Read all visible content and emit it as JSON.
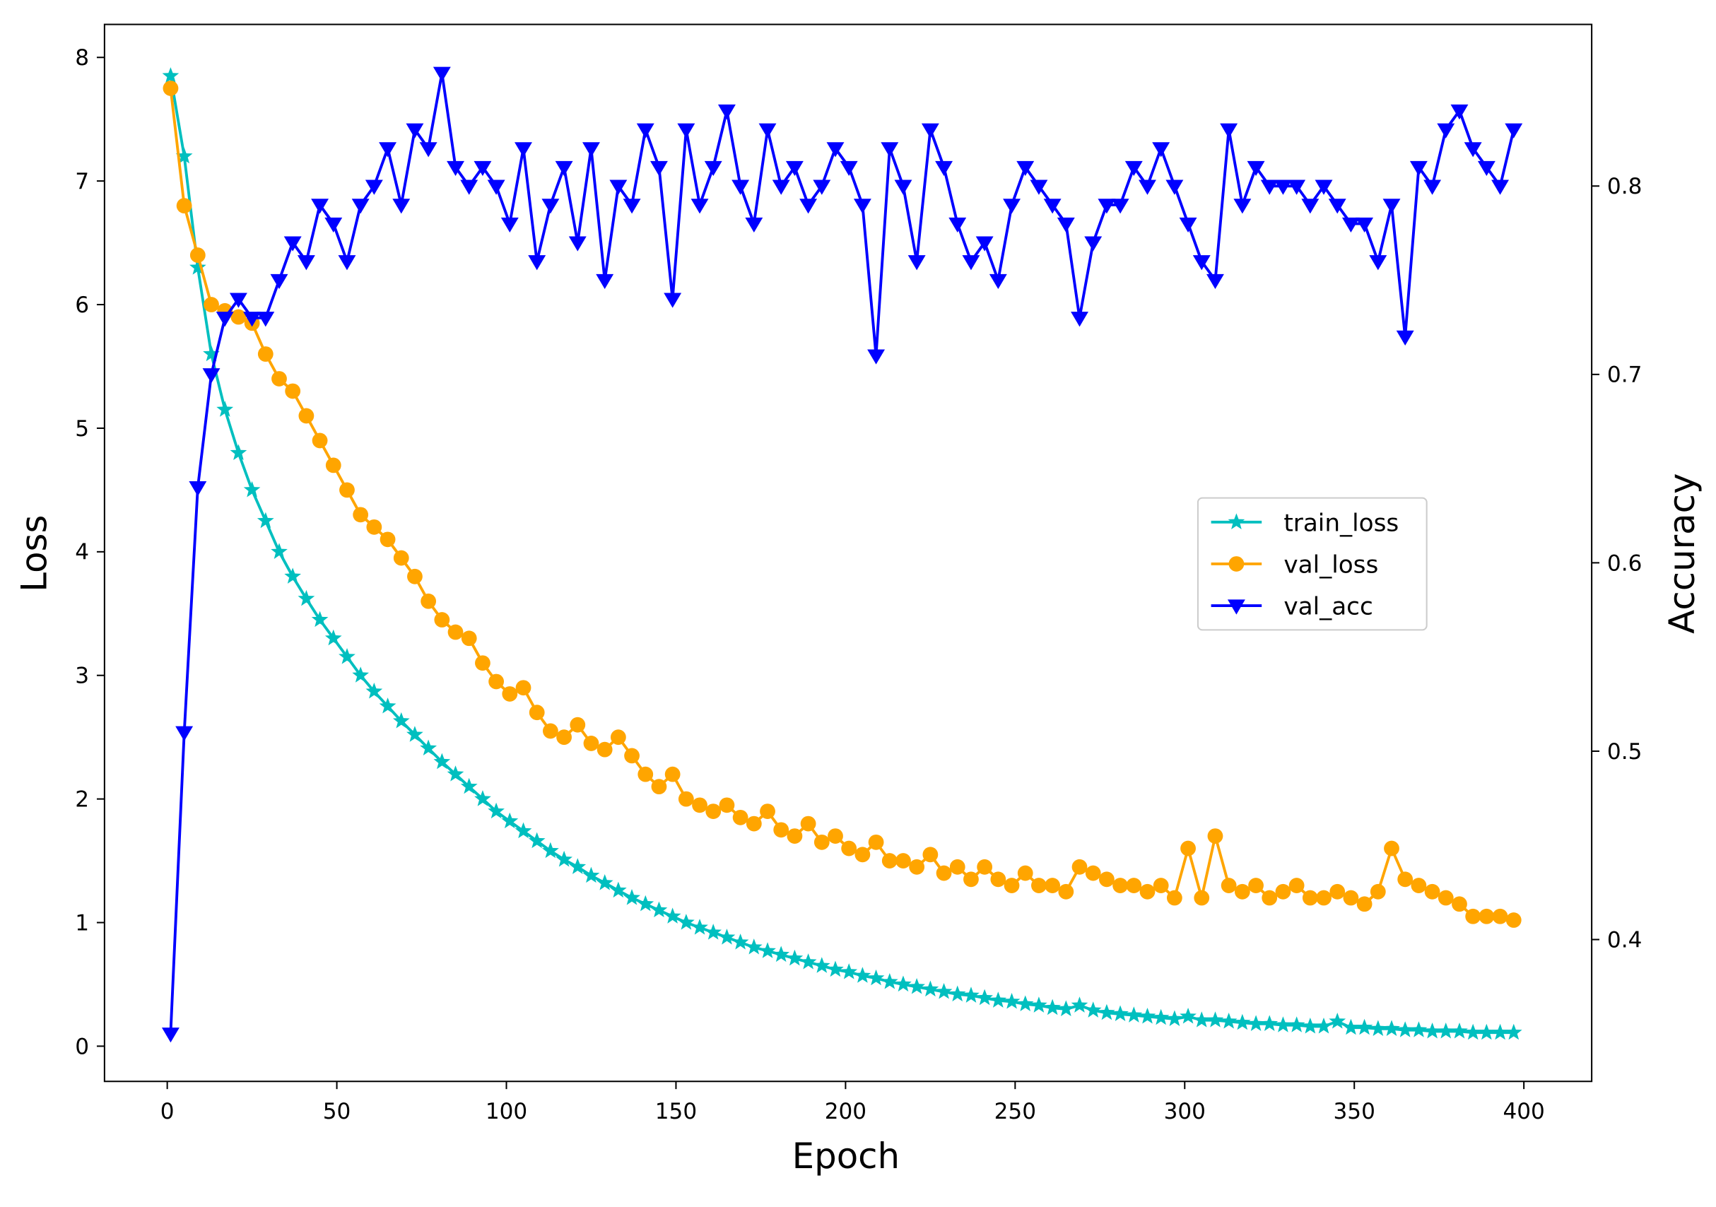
{
  "chart_data": {
    "type": "line",
    "x_label": "Epoch",
    "y_label": "Loss",
    "y2_label": "Accuracy",
    "x": [
      1,
      5,
      9,
      13,
      17,
      21,
      25,
      29,
      33,
      37,
      41,
      45,
      49,
      53,
      57,
      61,
      65,
      69,
      73,
      77,
      81,
      85,
      89,
      93,
      97,
      101,
      105,
      109,
      113,
      117,
      121,
      125,
      129,
      133,
      137,
      141,
      145,
      149,
      153,
      157,
      161,
      165,
      169,
      173,
      177,
      181,
      185,
      189,
      193,
      197,
      201,
      205,
      209,
      213,
      217,
      221,
      225,
      229,
      233,
      237,
      241,
      245,
      249,
      253,
      257,
      261,
      265,
      269,
      273,
      277,
      281,
      285,
      289,
      293,
      297,
      301,
      305,
      309,
      313,
      317,
      321,
      325,
      329,
      333,
      337,
      341,
      345,
      349,
      353,
      357,
      361,
      365,
      369,
      373,
      377,
      381,
      385,
      389,
      393,
      397
    ],
    "series": [
      {
        "name": "train_loss",
        "color": "#00bfbf",
        "marker": "star",
        "values": [
          7.85,
          7.2,
          6.3,
          5.6,
          5.15,
          4.8,
          4.5,
          4.25,
          4.0,
          3.8,
          3.62,
          3.45,
          3.3,
          3.15,
          3.0,
          2.87,
          2.75,
          2.63,
          2.52,
          2.41,
          2.3,
          2.2,
          2.1,
          2.0,
          1.9,
          1.82,
          1.74,
          1.66,
          1.58,
          1.51,
          1.45,
          1.38,
          1.32,
          1.26,
          1.2,
          1.15,
          1.1,
          1.05,
          1.0,
          0.96,
          0.92,
          0.88,
          0.84,
          0.8,
          0.77,
          0.74,
          0.71,
          0.68,
          0.65,
          0.62,
          0.6,
          0.57,
          0.55,
          0.52,
          0.5,
          0.48,
          0.46,
          0.44,
          0.42,
          0.41,
          0.39,
          0.37,
          0.36,
          0.34,
          0.33,
          0.31,
          0.3,
          0.33,
          0.29,
          0.27,
          0.26,
          0.25,
          0.24,
          0.23,
          0.22,
          0.24,
          0.21,
          0.21,
          0.2,
          0.19,
          0.18,
          0.18,
          0.17,
          0.17,
          0.16,
          0.16,
          0.2,
          0.15,
          0.15,
          0.14,
          0.14,
          0.13,
          0.13,
          0.12,
          0.12,
          0.12,
          0.11,
          0.11,
          0.11,
          0.11
        ]
      },
      {
        "name": "val_loss",
        "color": "#ffa500",
        "marker": "circle",
        "values": [
          7.75,
          6.8,
          6.4,
          6.0,
          5.95,
          5.9,
          5.85,
          5.6,
          5.4,
          5.3,
          5.1,
          4.9,
          4.7,
          4.5,
          4.3,
          4.2,
          4.1,
          3.95,
          3.8,
          3.6,
          3.45,
          3.35,
          3.3,
          3.1,
          2.95,
          2.85,
          2.9,
          2.7,
          2.55,
          2.5,
          2.6,
          2.45,
          2.4,
          2.5,
          2.35,
          2.2,
          2.1,
          2.2,
          2.0,
          1.95,
          1.9,
          1.95,
          1.85,
          1.8,
          1.9,
          1.75,
          1.7,
          1.8,
          1.65,
          1.7,
          1.6,
          1.55,
          1.65,
          1.5,
          1.5,
          1.45,
          1.55,
          1.4,
          1.45,
          1.35,
          1.45,
          1.35,
          1.3,
          1.4,
          1.3,
          1.3,
          1.25,
          1.45,
          1.4,
          1.35,
          1.3,
          1.3,
          1.25,
          1.3,
          1.2,
          1.6,
          1.2,
          1.7,
          1.3,
          1.25,
          1.3,
          1.2,
          1.25,
          1.3,
          1.2,
          1.2,
          1.25,
          1.2,
          1.15,
          1.25,
          1.6,
          1.35,
          1.3,
          1.25,
          1.2,
          1.15,
          1.05,
          1.05,
          1.05,
          1.02
        ]
      },
      {
        "name": "val_acc",
        "color": "#0000ff",
        "marker": "triangle_down",
        "axis": "y2",
        "values": [
          0.35,
          0.51,
          0.64,
          0.7,
          0.73,
          0.74,
          0.73,
          0.73,
          0.75,
          0.77,
          0.76,
          0.79,
          0.78,
          0.76,
          0.79,
          0.8,
          0.82,
          0.79,
          0.83,
          0.82,
          0.86,
          0.81,
          0.8,
          0.81,
          0.8,
          0.78,
          0.82,
          0.76,
          0.79,
          0.81,
          0.77,
          0.82,
          0.75,
          0.8,
          0.79,
          0.83,
          0.81,
          0.74,
          0.83,
          0.79,
          0.81,
          0.84,
          0.8,
          0.78,
          0.83,
          0.8,
          0.81,
          0.79,
          0.8,
          0.82,
          0.81,
          0.79,
          0.71,
          0.82,
          0.8,
          0.76,
          0.83,
          0.81,
          0.78,
          0.76,
          0.77,
          0.75,
          0.79,
          0.81,
          0.8,
          0.79,
          0.78,
          0.73,
          0.77,
          0.79,
          0.79,
          0.81,
          0.8,
          0.82,
          0.8,
          0.78,
          0.76,
          0.75,
          0.83,
          0.79,
          0.81,
          0.8,
          0.8,
          0.8,
          0.79,
          0.8,
          0.79,
          0.78,
          0.78,
          0.76,
          0.79,
          0.72,
          0.81,
          0.8,
          0.83,
          0.84,
          0.82,
          0.81,
          0.8,
          0.83
        ]
      }
    ],
    "xlim": [
      -18.5,
      420
    ],
    "xticks": [
      0,
      50,
      100,
      150,
      200,
      250,
      300,
      350,
      400
    ],
    "ylim": [
      -0.285,
      8.267
    ],
    "yticks": [
      0,
      1,
      2,
      3,
      4,
      5,
      6,
      7,
      8
    ],
    "y2lim": [
      0.3247,
      0.8858
    ],
    "y2ticks": [
      0.4,
      0.5,
      0.6,
      0.7,
      0.8
    ],
    "grid": false,
    "legend": "center right"
  }
}
